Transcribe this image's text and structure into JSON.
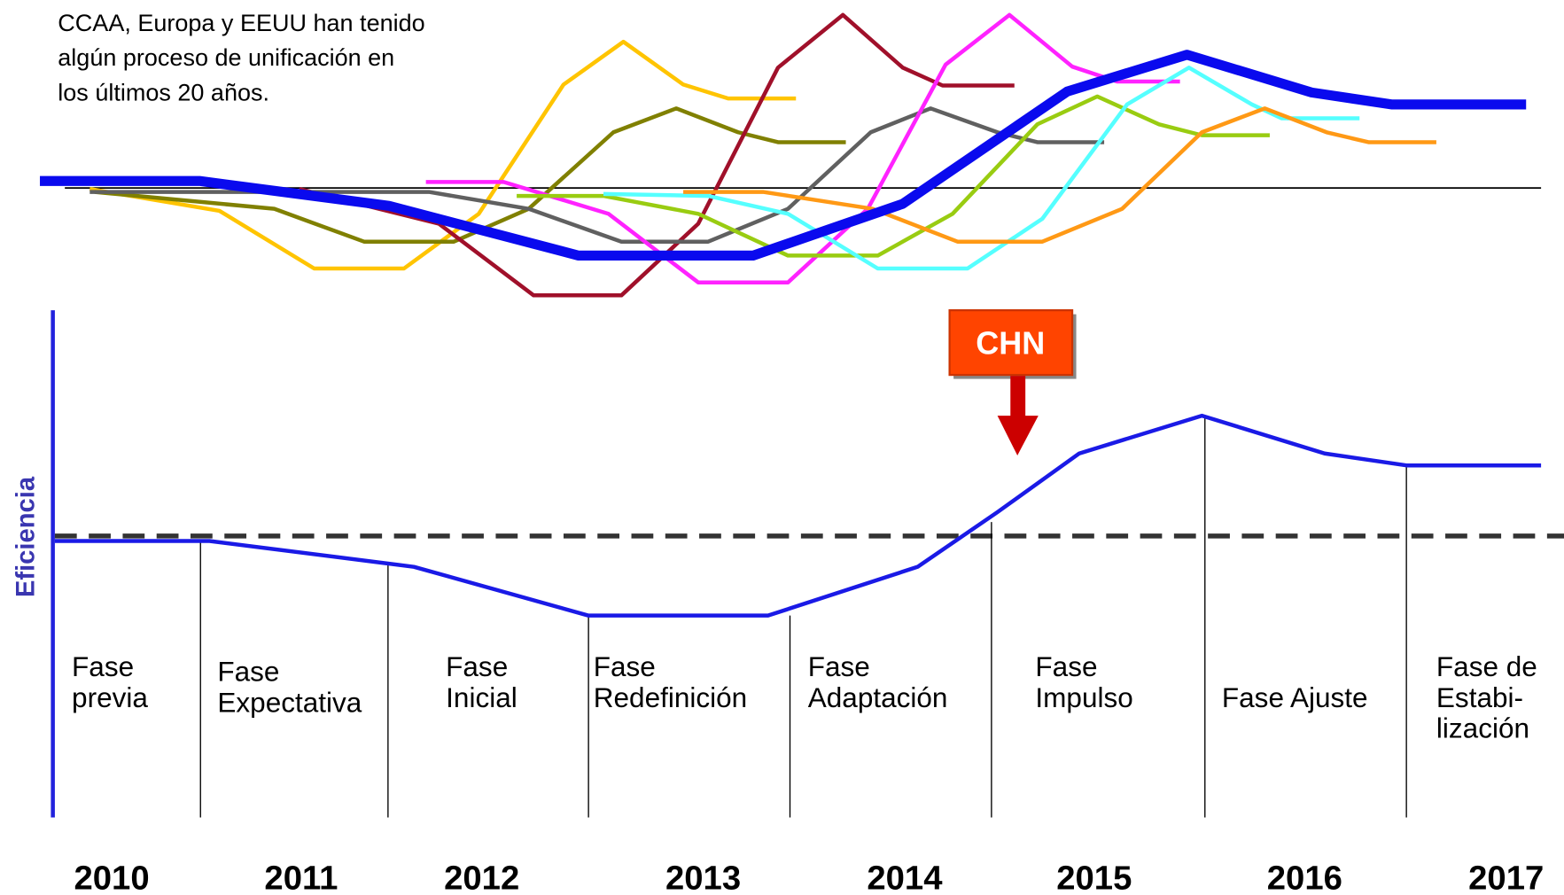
{
  "annotation": {
    "lines": [
      "CCAA, Europa y EEUU han tenido",
      "algún proceso de unificación en",
      "los últimos 20 años."
    ]
  },
  "y_label": "Eficiencia",
  "callout": "CHN",
  "phases": [
    {
      "lines": [
        "Fase",
        "previa"
      ]
    },
    {
      "lines": [
        "Fase",
        "Expectativa"
      ]
    },
    {
      "lines": [
        "Fase",
        "Inicial"
      ]
    },
    {
      "lines": [
        "Fase",
        "Redefinición"
      ]
    },
    {
      "lines": [
        "Fase",
        "Adaptación"
      ]
    },
    {
      "lines": [
        "Fase",
        "Impulso"
      ]
    },
    {
      "lines": [
        "Fase Ajuste"
      ]
    },
    {
      "lines": [
        "Fase de",
        "Estabi-",
        "lización"
      ]
    }
  ],
  "years": [
    "2010",
    "2011",
    "2012",
    "2013",
    "2014",
    "2015",
    "2016",
    "2017"
  ]
}
